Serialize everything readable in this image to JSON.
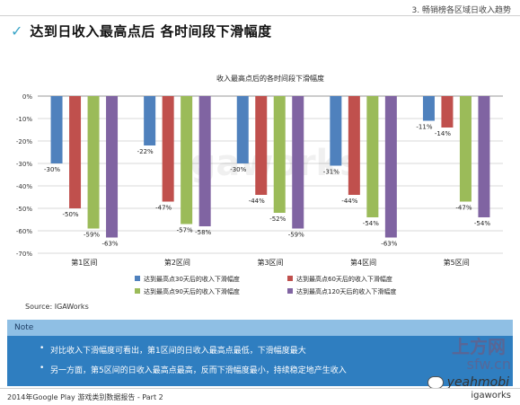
{
  "header": {
    "section_label": "3. 畅销榜各区域日收入趋势",
    "headline": "达到日收入最高点后 各时间段下滑幅度",
    "check_icon": "checkmark-icon"
  },
  "chart_data": {
    "type": "bar",
    "title": "收入最高点后的各时间段下滑幅度",
    "categories": [
      "第1区间",
      "第2区间",
      "第3区间",
      "第4区间",
      "第5区间"
    ],
    "series": [
      {
        "name": "达到最高点30天后的收入下滑幅度",
        "color": "#4f81bd",
        "values": [
          -30,
          -22,
          -30,
          -31,
          -11
        ]
      },
      {
        "name": "达到最高点60天后的收入下滑幅度",
        "color": "#c0504d",
        "values": [
          -50,
          -47,
          -44,
          -44,
          -14
        ]
      },
      {
        "name": "达到最高点90天后的收入下滑幅度",
        "color": "#9bbb59",
        "values": [
          -59,
          -57,
          -52,
          -54,
          -47
        ]
      },
      {
        "name": "达到最高点120天后的收入下滑幅度",
        "color": "#8064a2",
        "values": [
          -63,
          -58,
          -59,
          -63,
          -54
        ]
      }
    ],
    "ylim": [
      -70,
      0
    ],
    "yticks": [
      "0%",
      "-10%",
      "-20%",
      "-30%",
      "-40%",
      "-50%",
      "-60%",
      "-70%"
    ],
    "value_suffix": "%",
    "grid": true,
    "legend_position": "bottom",
    "watermark": "igaworks"
  },
  "source": "Source: IGAWorks",
  "note": {
    "title": "Note",
    "bullets": [
      "对比收入下滑幅度可看出，第1区间的日收入最高点最低，下滑幅度最大",
      "另一方面，第5区间的日收入最高点最高，反而下滑幅度最小，持续稳定地产生收入"
    ]
  },
  "overlay": {
    "watermark_cn": "上方网",
    "watermark_url": "sfw.cn",
    "wechat_icon": "wechat-icon",
    "wechat_text": "yeahmobi"
  },
  "footer": {
    "report": "2014年Google Play 游戏类别数据报告 - Part 2",
    "logo": "igaworks"
  }
}
